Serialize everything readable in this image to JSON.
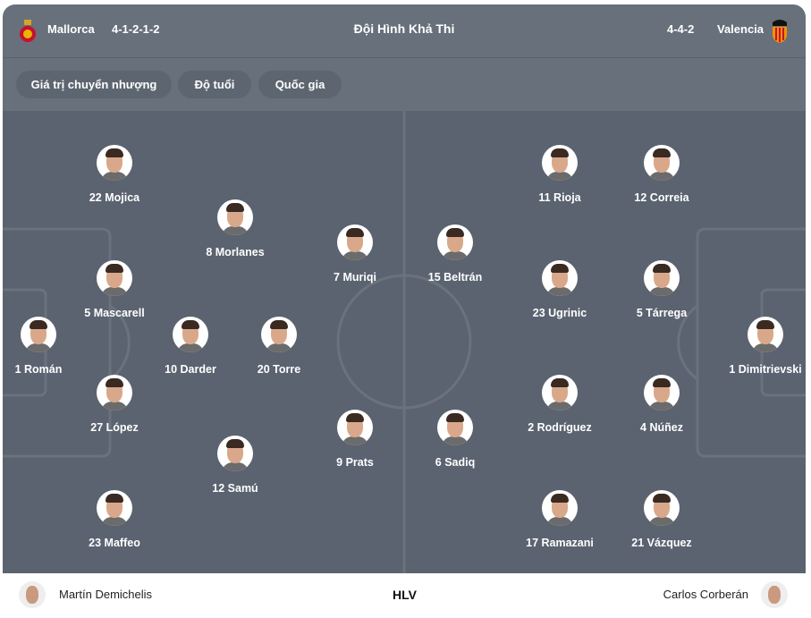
{
  "header": {
    "title": "Đội Hình Khả Thi",
    "home": {
      "name": "Mallorca",
      "formation": "4-1-2-1-2",
      "crest": "mallorca-crest"
    },
    "away": {
      "name": "Valencia",
      "formation": "4-4-2",
      "crest": "valencia-crest"
    }
  },
  "filters": [
    "Giá trị chuyển nhượng",
    "Độ tuổi",
    "Quốc gia"
  ],
  "colors": {
    "header": "#67707b",
    "pitch": "#5b6370",
    "chip": "#5d6570"
  },
  "home_players": [
    "22 Mojica",
    "8 Morlanes",
    "7 Muriqi",
    "5 Mascarell",
    "1 Román",
    "10 Darder",
    "20 Torre",
    "27 López",
    "12 Samú",
    "9 Prats",
    "23 Maffeo"
  ],
  "away_players": [
    "11 Rioja",
    "12 Correia",
    "15 Beltrán",
    "23 Ugrinic",
    "5 Tárrega",
    "1 Dimitrievski",
    "2 Rodríguez",
    "4 Núñez",
    "6 Sadiq",
    "17 Ramazani",
    "21 Vázquez"
  ],
  "footer": {
    "label": "HLV",
    "home_coach": "Martín Demichelis",
    "away_coach": "Carlos Corberán"
  }
}
